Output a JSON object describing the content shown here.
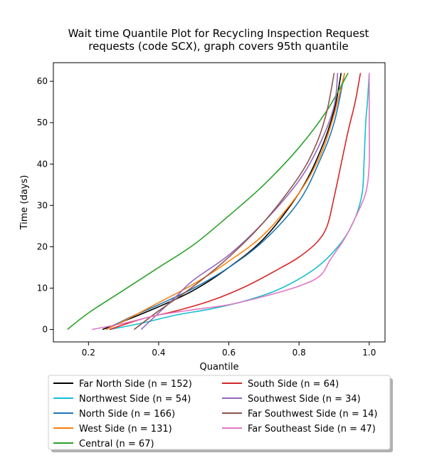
{
  "chart_data": {
    "type": "line",
    "title": "Wait time Quantile Plot for Recycling Inspection Request\nrequests (code SCX), graph covers 95th quantile",
    "xlabel": "Quantile",
    "ylabel": "Time (days)",
    "xlim": [
      0.1,
      1.045
    ],
    "ylim": [
      -3,
      64.5
    ],
    "xticks": [
      0.2,
      0.4,
      0.6,
      0.8,
      1.0
    ],
    "xtick_labels": [
      "0.2",
      "0.4",
      "0.6",
      "0.8",
      "1.0"
    ],
    "yticks": [
      0,
      10,
      20,
      30,
      40,
      50,
      60
    ],
    "ytick_labels": [
      "0",
      "10",
      "20",
      "30",
      "40",
      "50",
      "60"
    ],
    "grid": false,
    "legend": {
      "placement": "below-plot",
      "columns": 2
    },
    "series": [
      {
        "name": "Far North Side (n = 152)",
        "color": "#000000",
        "points": [
          [
            0.24,
            0
          ],
          [
            0.3,
            2
          ],
          [
            0.4,
            5.5
          ],
          [
            0.5,
            9.5
          ],
          [
            0.6,
            15
          ],
          [
            0.7,
            22
          ],
          [
            0.8,
            33
          ],
          [
            0.86,
            43
          ],
          [
            0.9,
            53
          ],
          [
            0.92,
            62
          ]
        ]
      },
      {
        "name": "Northwest Side (n = 54)",
        "color": "#17becf",
        "points": [
          [
            0.26,
            0
          ],
          [
            0.35,
            1.5
          ],
          [
            0.45,
            3.5
          ],
          [
            0.55,
            5
          ],
          [
            0.65,
            7
          ],
          [
            0.75,
            10
          ],
          [
            0.85,
            15
          ],
          [
            0.92,
            21
          ],
          [
            0.96,
            27
          ],
          [
            0.98,
            33
          ],
          [
            0.985,
            40
          ],
          [
            0.99,
            50
          ],
          [
            0.995,
            55
          ],
          [
            1.0,
            62
          ]
        ]
      },
      {
        "name": "North Side (n = 166)",
        "color": "#1f77b4",
        "points": [
          [
            0.25,
            0
          ],
          [
            0.32,
            3
          ],
          [
            0.4,
            6
          ],
          [
            0.5,
            10
          ],
          [
            0.6,
            15
          ],
          [
            0.7,
            21.5
          ],
          [
            0.8,
            31
          ],
          [
            0.86,
            41
          ],
          [
            0.9,
            50
          ],
          [
            0.93,
            62
          ]
        ]
      },
      {
        "name": "West Side (n = 131)",
        "color": "#ff7f0e",
        "points": [
          [
            0.25,
            0
          ],
          [
            0.3,
            2
          ],
          [
            0.4,
            6.5
          ],
          [
            0.5,
            11
          ],
          [
            0.6,
            16.5
          ],
          [
            0.7,
            23
          ],
          [
            0.8,
            33
          ],
          [
            0.86,
            42
          ],
          [
            0.9,
            52
          ],
          [
            0.93,
            62
          ]
        ]
      },
      {
        "name": "Central (n = 67)",
        "color": "#2ca02c",
        "points": [
          [
            0.14,
            0
          ],
          [
            0.2,
            4
          ],
          [
            0.3,
            9.5
          ],
          [
            0.4,
            15
          ],
          [
            0.5,
            20.5
          ],
          [
            0.6,
            27.5
          ],
          [
            0.7,
            35
          ],
          [
            0.8,
            44
          ],
          [
            0.88,
            53
          ],
          [
            0.94,
            62
          ]
        ]
      },
      {
        "name": "South Side (n = 64)",
        "color": "#d62728",
        "points": [
          [
            0.26,
            0
          ],
          [
            0.35,
            2.5
          ],
          [
            0.45,
            4.5
          ],
          [
            0.55,
            7
          ],
          [
            0.65,
            10.5
          ],
          [
            0.75,
            15
          ],
          [
            0.8,
            17.5
          ],
          [
            0.85,
            21
          ],
          [
            0.88,
            25
          ],
          [
            0.9,
            32
          ],
          [
            0.92,
            40
          ],
          [
            0.94,
            48
          ],
          [
            0.96,
            55
          ],
          [
            0.975,
            62
          ]
        ]
      },
      {
        "name": "Southwest Side (n = 34)",
        "color": "#9467bd",
        "points": [
          [
            0.35,
            0
          ],
          [
            0.4,
            4
          ],
          [
            0.45,
            8
          ],
          [
            0.5,
            12
          ],
          [
            0.6,
            18
          ],
          [
            0.7,
            26
          ],
          [
            0.8,
            36
          ],
          [
            0.86,
            45
          ],
          [
            0.9,
            54
          ],
          [
            0.91,
            62
          ]
        ]
      },
      {
        "name": "Far Southwest Side (n = 14)",
        "color": "#8c564b",
        "points": [
          [
            0.33,
            0
          ],
          [
            0.4,
            4.5
          ],
          [
            0.5,
            10.5
          ],
          [
            0.6,
            17.5
          ],
          [
            0.7,
            26
          ],
          [
            0.8,
            37
          ],
          [
            0.85,
            45
          ],
          [
            0.88,
            53
          ],
          [
            0.9,
            62
          ]
        ]
      },
      {
        "name": "Far Southeast Side (n = 47)",
        "color": "#e377c2",
        "points": [
          [
            0.21,
            0
          ],
          [
            0.3,
            1.5
          ],
          [
            0.4,
            3.5
          ],
          [
            0.5,
            4.8
          ],
          [
            0.6,
            6
          ],
          [
            0.7,
            8
          ],
          [
            0.8,
            10.5
          ],
          [
            0.86,
            13
          ],
          [
            0.89,
            17
          ],
          [
            0.93,
            22
          ],
          [
            0.96,
            27
          ],
          [
            0.99,
            33
          ],
          [
            1.0,
            40
          ],
          [
            1.0,
            50
          ],
          [
            1.0,
            62
          ]
        ]
      }
    ]
  }
}
